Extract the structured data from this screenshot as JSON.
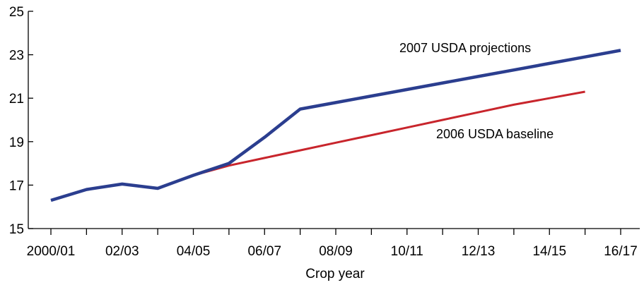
{
  "chart_data": {
    "type": "line",
    "title": "",
    "xlabel": "Crop year",
    "ylabel": "",
    "ylim": [
      15,
      25
    ],
    "y_ticks": [
      15,
      17,
      19,
      21,
      23,
      25
    ],
    "categories": [
      "2000/01",
      "01/02",
      "02/03",
      "03/04",
      "04/05",
      "05/06",
      "06/07",
      "07/08",
      "08/09",
      "09/10",
      "10/11",
      "11/12",
      "12/13",
      "13/14",
      "14/15",
      "15/16",
      "16/17"
    ],
    "x_tick_labels": [
      "2000/01",
      "",
      "02/03",
      "",
      "04/05",
      "",
      "06/07",
      "",
      "08/09",
      "",
      "10/11",
      "",
      "12/13",
      "",
      "14/15",
      "",
      "16/17"
    ],
    "grid": false,
    "legend": "none",
    "series": [
      {
        "name": "2007 USDA projections",
        "color": "#2b3e8f",
        "values": [
          16.3,
          16.8,
          17.05,
          16.85,
          17.45,
          18.0,
          19.2,
          20.5,
          20.8,
          21.1,
          21.4,
          21.7,
          22.0,
          22.3,
          22.6,
          22.9,
          23.2
        ]
      },
      {
        "name": "2006 USDA baseline",
        "color": "#c8252c",
        "values": [
          null,
          null,
          null,
          null,
          17.45,
          17.9,
          18.25,
          18.6,
          18.95,
          19.3,
          19.65,
          20.0,
          20.35,
          20.7,
          21.0,
          21.3,
          null
        ]
      }
    ]
  }
}
